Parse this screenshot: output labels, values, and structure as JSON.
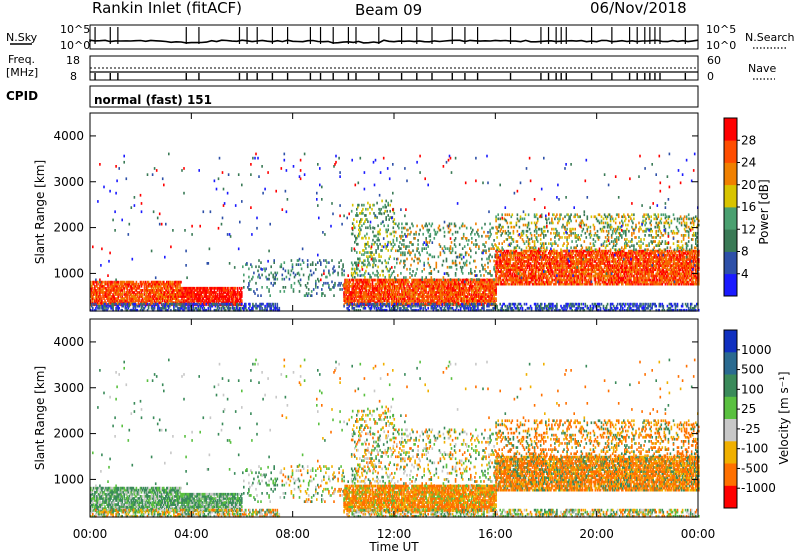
{
  "header": {
    "station": "Rankin Inlet (fitACF)",
    "beam": "Beam 09",
    "date": "06/Nov/2018"
  },
  "left_labels": {
    "nsky": "N.Sky",
    "nsky_hi": "10^5",
    "nsky_lo": "10^0",
    "freq": "Freq.",
    "freq_unit": "[MHz]",
    "freq_hi": "18",
    "freq_lo": "8",
    "cpid": "CPID"
  },
  "right_labels": {
    "nsearch": "N.Search",
    "nsearch_hi": "10^5",
    "nsearch_lo": "10^0",
    "nave": "Nave",
    "nave_hi": "60",
    "nave_lo": "0"
  },
  "cpid_text": "normal (fast) 151",
  "colors": {
    "power": [
      "#1a1aff",
      "#2e50a8",
      "#3a7a56",
      "#4aa070",
      "#d8c400",
      "#f08000",
      "#ff4d00",
      "#ff0000"
    ],
    "velocity": [
      "#1030c0",
      "#2a6a90",
      "#3a8a5a",
      "#5ac040",
      "#c8c8c8",
      "#f0b000",
      "#ff7000",
      "#ff0000"
    ]
  },
  "chart_data": [
    {
      "type": "heatmap",
      "name": "power",
      "ylabel": "Slant Range [km]",
      "x_range": [
        0,
        24
      ],
      "ylim": [
        180,
        4500
      ],
      "yticks": [
        "1000",
        "2000",
        "3000",
        "4000"
      ],
      "ytick_values": [
        1000,
        2000,
        3000,
        4000
      ],
      "colorbar": {
        "label": "Power [dB]",
        "tick_labels": [
          "4",
          "8",
          "12",
          "16",
          "20",
          "24",
          "28"
        ],
        "range": [
          0,
          30
        ]
      }
    },
    {
      "type": "heatmap",
      "name": "velocity",
      "ylabel": "Slant Range [km]",
      "x_range": [
        0,
        24
      ],
      "ylim": [
        180,
        4500
      ],
      "yticks": [
        "1000",
        "2000",
        "3000",
        "4000"
      ],
      "ytick_values": [
        1000,
        2000,
        3000,
        4000
      ],
      "colorbar": {
        "label": "Velocity [m s⁻¹]",
        "tick_labels": [
          "1000",
          "500",
          "100",
          "25",
          "-25",
          "-100",
          "-500",
          "-1000"
        ]
      }
    }
  ],
  "x_axis": {
    "label": "Time UT",
    "ticks": [
      "00:00",
      "04:00",
      "08:00",
      "12:00",
      "16:00",
      "20:00",
      "00:00"
    ],
    "tick_hours": [
      0,
      4,
      8,
      12,
      16,
      20,
      24
    ]
  }
}
